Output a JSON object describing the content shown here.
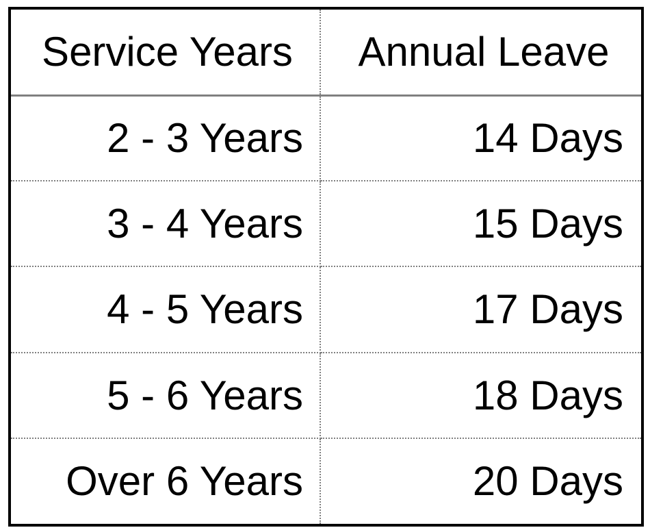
{
  "table": {
    "headers": {
      "service_years": "Service Years",
      "annual_leave": "Annual Leave"
    },
    "rows": [
      {
        "service_years": "2 - 3 Years",
        "annual_leave": "14 Days"
      },
      {
        "service_years": "3 - 4 Years",
        "annual_leave": "15 Days"
      },
      {
        "service_years": "4 - 5 Years",
        "annual_leave": "17 Days"
      },
      {
        "service_years": "5 - 6 Years",
        "annual_leave": "18 Days"
      },
      {
        "service_years": "Over 6 Years",
        "annual_leave": "20 Days"
      }
    ]
  },
  "colors": {
    "border": "#000000",
    "grid_line": "#7f7f7f",
    "text": "#000000",
    "background": "#ffffff"
  }
}
